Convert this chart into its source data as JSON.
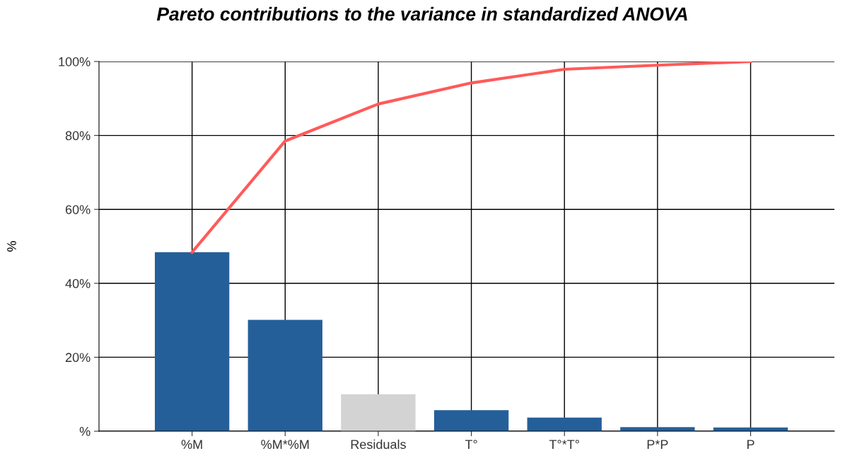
{
  "chart_data": {
    "type": "bar",
    "title": "Pareto contributions to the variance in standardized ANOVA",
    "ylabel": "%",
    "categories": [
      "%M",
      "%M*%M",
      "Residuals",
      "T°",
      "T°*T°",
      "P*P",
      "P"
    ],
    "series": [
      {
        "colors": [
          "#255f99",
          "#255f99",
          "#d3d3d3",
          "#255f99",
          "#255f99",
          "#255f99",
          "#255f99"
        ],
        "values": [
          48.4,
          30.1,
          10.0,
          5.7,
          3.7,
          1.1,
          1.0
        ]
      },
      {
        "type": "line",
        "color": "#ff5a5a",
        "values": [
          48.4,
          78.5,
          88.5,
          94.2,
          97.9,
          99.0,
          100
        ]
      }
    ],
    "ylim": [
      0,
      100
    ],
    "yticks": [
      {
        "value": 0,
        "label": "%"
      },
      {
        "value": 20,
        "label": "20%"
      },
      {
        "value": 40,
        "label": "40%"
      },
      {
        "value": 60,
        "label": "60%"
      },
      {
        "value": 80,
        "label": "80%"
      },
      {
        "value": 100,
        "label": "100%"
      }
    ],
    "grid": true,
    "marker": "none",
    "line_style": "solid"
  }
}
